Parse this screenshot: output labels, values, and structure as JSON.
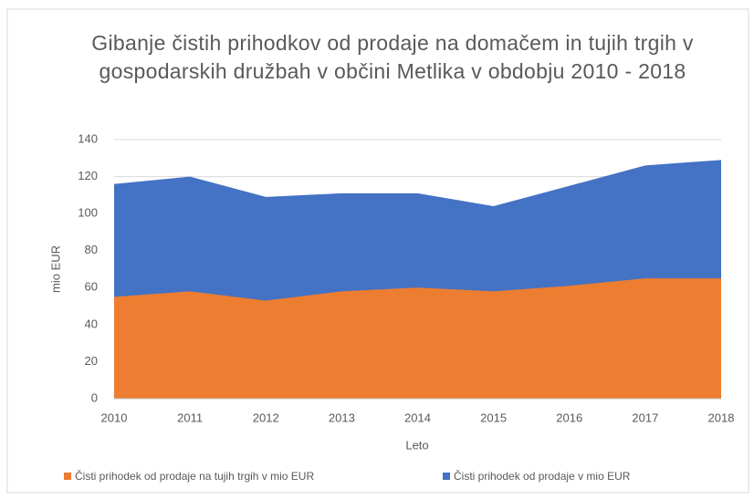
{
  "chart_data": {
    "type": "area",
    "title": "Gibanje čistih prihodkov od prodaje na domačem in tujih trgih v gospodarskih družbah v občini Metlika v obdobju 2010 - 2018",
    "x_label": "Leto",
    "y_label": "mio EUR",
    "categories": [
      "2010",
      "2011",
      "2012",
      "2013",
      "2014",
      "2015",
      "2016",
      "2017",
      "2018"
    ],
    "series": [
      {
        "name": "Čisti prihodek od prodaje na tujih trgih v mio EUR",
        "color": "#ed7d31",
        "values": [
          55,
          58,
          53,
          58,
          60,
          58,
          61,
          65,
          65
        ]
      },
      {
        "name": "Čisti prihodek od prodaje v mio EUR",
        "color": "#4472c4",
        "values": [
          116,
          120,
          109,
          111,
          111,
          104,
          115,
          126,
          129
        ]
      }
    ],
    "ylim": [
      0,
      140
    ],
    "yticks": [
      0,
      20,
      40,
      60,
      80,
      100,
      120,
      140
    ],
    "grid": true,
    "legend": "bottom"
  }
}
